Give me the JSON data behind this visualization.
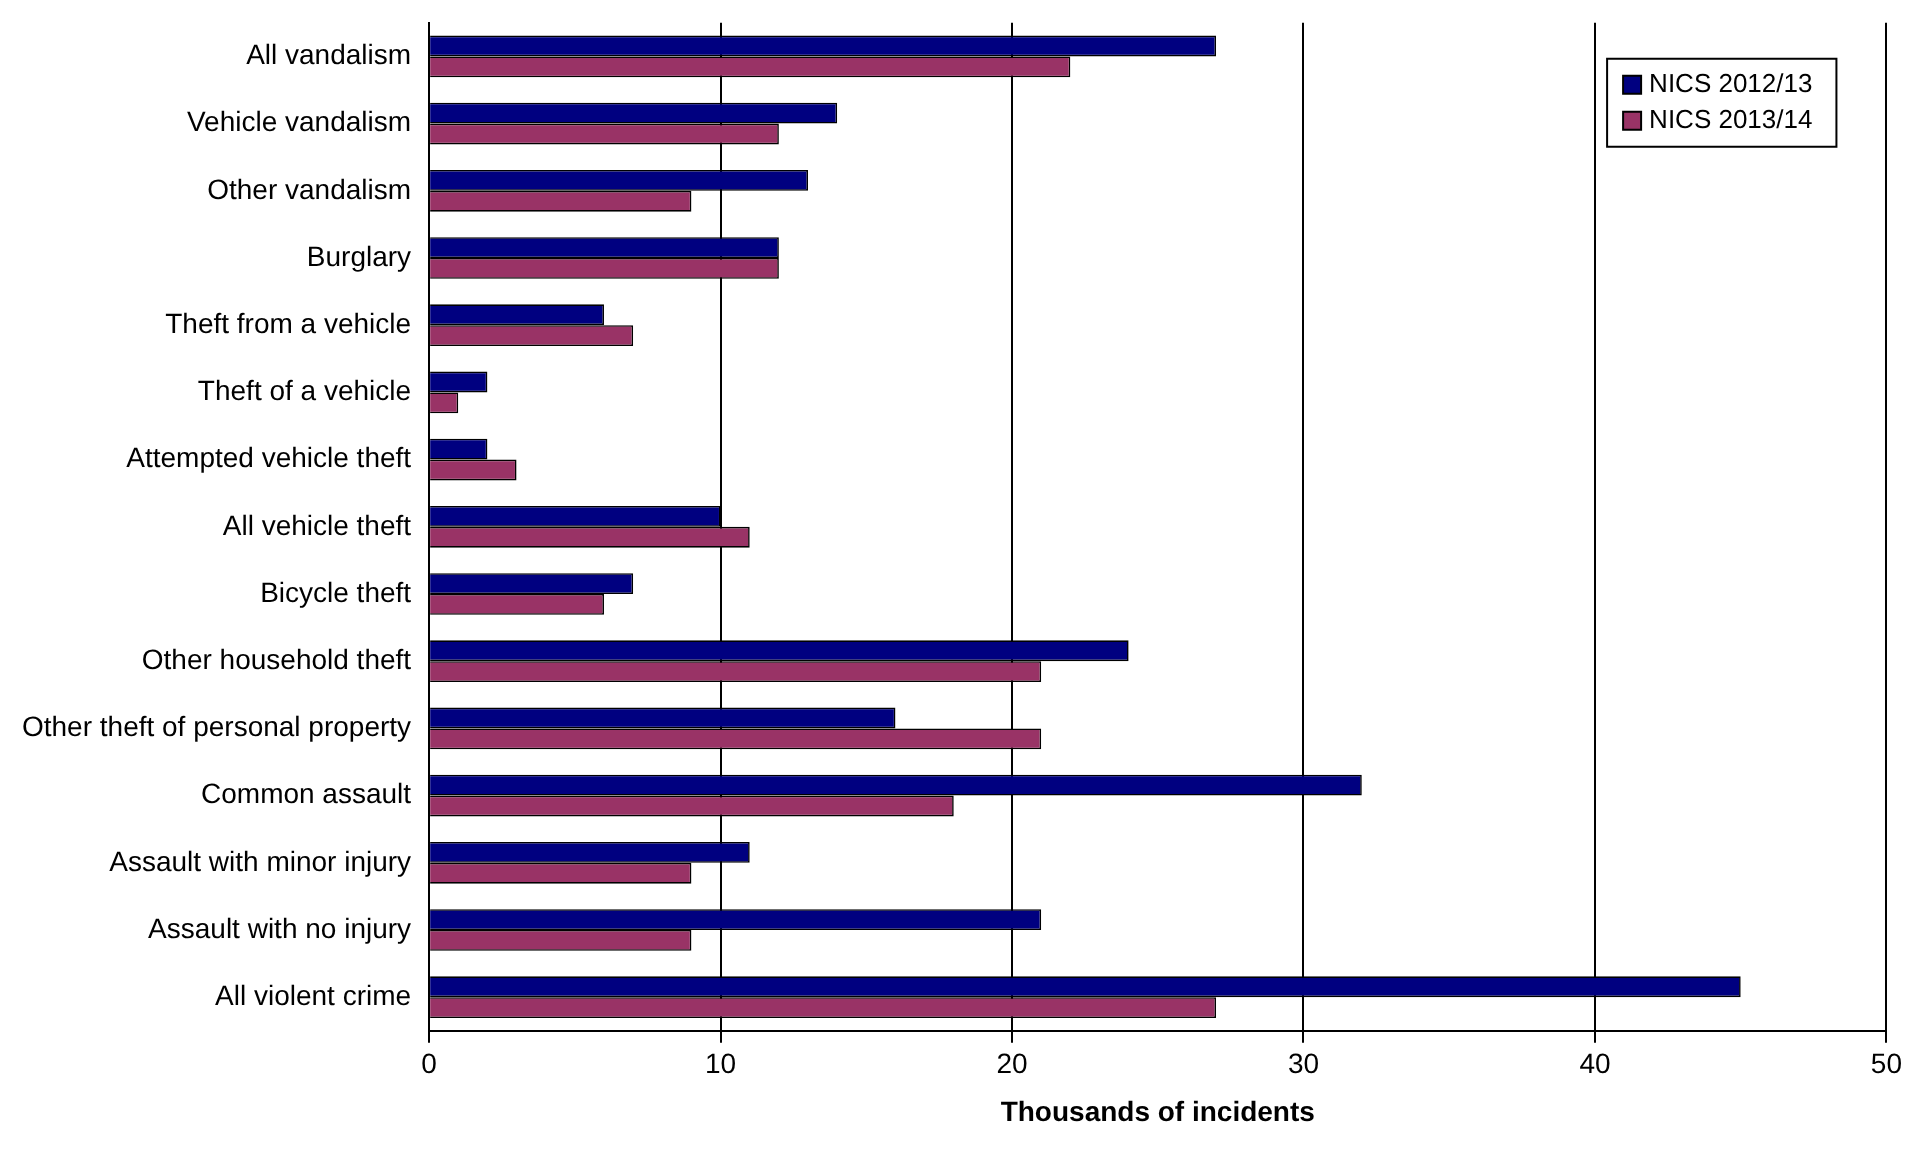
{
  "chart_data": {
    "type": "bar",
    "orientation": "horizontal",
    "xlabel": "Thousands of incidents",
    "categories": [
      "All vandalism",
      "Vehicle vandalism",
      "Other vandalism",
      "Burglary",
      "Theft from a vehicle",
      "Theft of a vehicle",
      "Attempted vehicle theft",
      "All vehicle theft",
      "Bicycle theft",
      "Other household theft",
      "Other theft of personal property",
      "Common assault",
      "Assault with minor injury",
      "Assault with no injury",
      "All violent crime"
    ],
    "series": [
      {
        "name": "NICS 2012/13",
        "color": "#000080",
        "values": [
          27,
          14,
          13,
          12,
          6,
          2,
          2,
          10,
          7,
          24,
          16,
          32,
          11,
          21,
          45
        ]
      },
      {
        "name": "NICS 2013/14",
        "color": "#993366",
        "values": [
          22,
          12,
          9,
          12,
          7,
          1,
          3,
          11,
          6,
          21,
          21,
          18,
          9,
          9,
          27
        ]
      }
    ],
    "xlim": [
      0,
      50
    ],
    "xticks": [
      0,
      10,
      20,
      30,
      40,
      50
    ],
    "grid": "x",
    "legend": "top right"
  }
}
